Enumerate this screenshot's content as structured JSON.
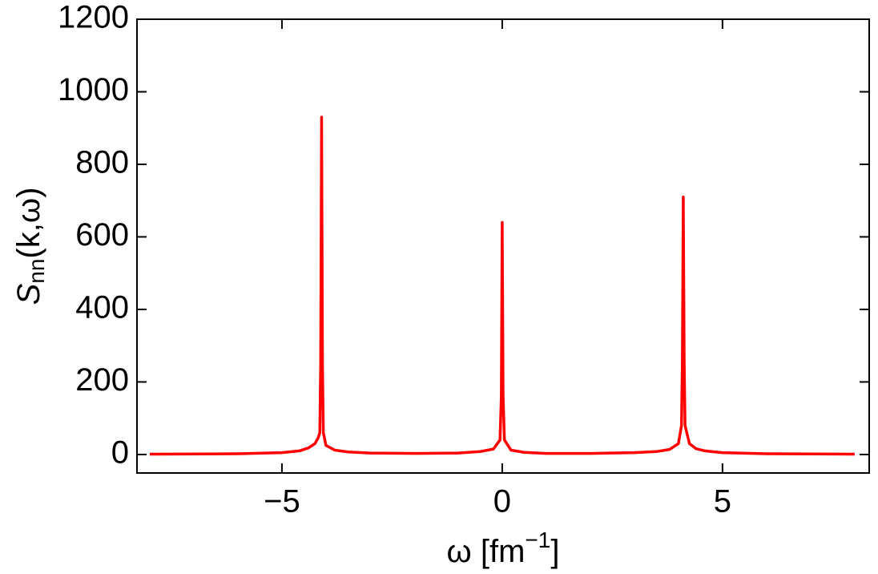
{
  "chart_data": {
    "type": "line",
    "ylabel": [
      "S",
      "nn",
      "(k,ω)"
    ],
    "xlabel": [
      "ω [fm",
      "−1",
      "]"
    ],
    "x": [
      -8,
      -6,
      -5,
      -4.6,
      -4.4,
      -4.25,
      -4.18,
      -4.14,
      -4.12,
      -4.1,
      -4.08,
      -4.06,
      -4.0,
      -3.8,
      -3.5,
      -3,
      -2,
      -1,
      -0.5,
      -0.2,
      -0.05,
      -0.02,
      0,
      0.02,
      0.05,
      0.2,
      0.5,
      1,
      2,
      3,
      3.5,
      3.8,
      4.0,
      4.07,
      4.09,
      4.11,
      4.13,
      4.15,
      4.25,
      4.4,
      4.6,
      5,
      6,
      8
    ],
    "series": [
      {
        "color": "#ff0000",
        "values": [
          1,
          2,
          5,
          10,
          18,
          30,
          45,
          60,
          250,
          930,
          250,
          60,
          25,
          12,
          7,
          4,
          3,
          4,
          8,
          15,
          40,
          160,
          640,
          160,
          40,
          12,
          6,
          3,
          3,
          5,
          8,
          14,
          30,
          80,
          260,
          710,
          260,
          80,
          30,
          16,
          10,
          5,
          2,
          1
        ]
      }
    ],
    "xlim": [
      -8.29,
      8.33
    ],
    "ylim": [
      -51,
      1200
    ],
    "xticks": [
      {
        "value": -5,
        "label": "−5"
      },
      0,
      5
    ],
    "yticks": [
      0,
      200,
      400,
      600,
      800,
      1000,
      1200
    ]
  }
}
